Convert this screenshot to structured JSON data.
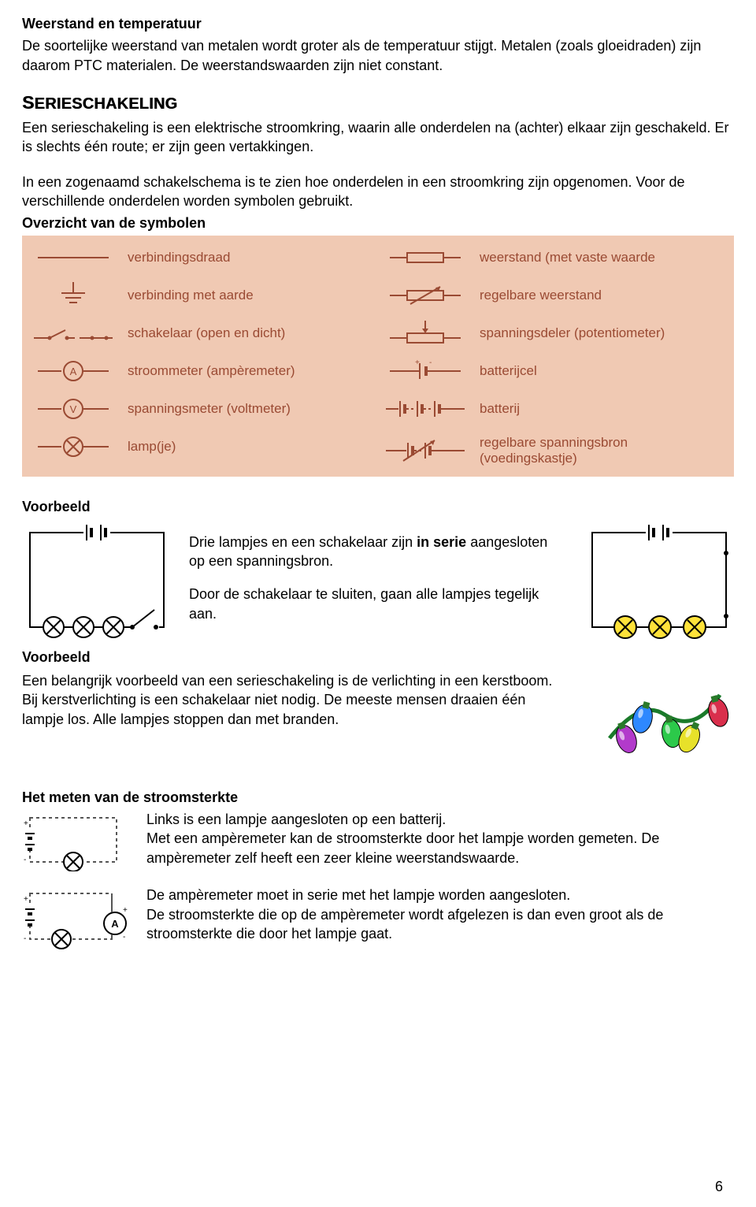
{
  "heading1": "Weerstand en temperatuur",
  "para1": "De soortelijke weerstand van metalen wordt groter als de temperatuur stijgt. Metalen (zoals gloeidraden) zijn daarom PTC materialen. De weerstandswaarden zijn niet constant.",
  "heading2_first": "S",
  "heading2_rest": "ERIESCHAKELING",
  "para2": "Een serieschakeling is een elektrische stroomkring, waarin alle onderdelen na (achter) elkaar zijn geschakeld. Er is slechts één route; er zijn geen vertakkingen.",
  "para3": "In een zogenaamd schakelschema is te zien hoe onderdelen in een stroomkring zijn opgenomen. Voor de verschillende onderdelen worden symbolen gebruikt.",
  "overzicht": "Overzicht van de symbolen",
  "symbols_left": [
    "verbindingsdraad",
    "verbinding met aarde",
    "schakelaar (open en dicht)",
    "stroommeter (ampèremeter)",
    "spanningsmeter (voltmeter)",
    "lamp(je)"
  ],
  "symbols_right": [
    "weerstand (met vaste waarde",
    "regelbare weerstand",
    "spanningsdeler (potentiometer)",
    "batterijcel",
    "batterij",
    "regelbare spanningsbron (voedingskastje)"
  ],
  "symbol_label_color": "#9a4a33",
  "panel_bg": "#f0c9b3",
  "voorbeeld": "Voorbeeld",
  "ex_line1a": "Drie lampjes en een schakelaar zijn ",
  "ex_line1b": "in serie",
  "ex_line1c": " aangesloten op een spanningsbron.",
  "ex_line2": "Door de schakelaar te sluiten, gaan alle lampjes tegelijk aan.",
  "ex2_para": "Een belangrijk voorbeeld van een serieschakeling is de verlichting in een kerstboom.\nBij kerstverlichting is een schakelaar niet nodig. De meeste mensen draaien één lampje los. Alle lampjes stoppen dan met branden.",
  "meten_head": "Het meten van de stroomsterkte",
  "meten_p1": "Links is een lampje aangesloten op een batterij.\nMet een ampèremeter kan de stroomsterkte door het lampje worden gemeten. De ampèremeter zelf heeft een zeer kleine weerstandswaarde.",
  "meten_p2": "De ampèremeter moet in serie met het lampje worden aangesloten.\nDe stroomsterkte die op de ampèremeter wordt afgelezen is dan even groot als de stroomsterkte die door het lampje gaat.",
  "page_number": "6",
  "bulb_colors": [
    "#b23acb",
    "#2e88ff",
    "#2cc94a",
    "#e7e12a",
    "#d92f4c"
  ]
}
